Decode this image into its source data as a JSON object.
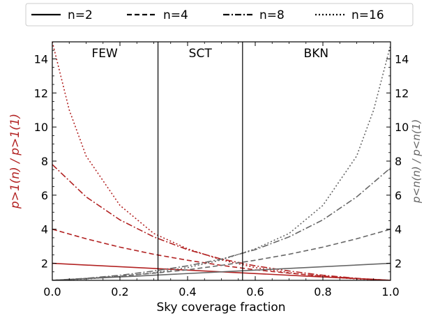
{
  "chart_data": {
    "type": "line",
    "xlabel": "Sky coverage fraction",
    "ylabel_left": "p>1(n) / p>1(1)",
    "ylabel_right": "p<n(n) / p<n(1)",
    "xlim": [
      0.0,
      1.0
    ],
    "ylim": [
      1.0,
      15.0
    ],
    "xticks": [
      0.0,
      0.2,
      0.4,
      0.6,
      0.8,
      1.0
    ],
    "xtick_labels": [
      "0.0",
      "0.2",
      "0.4",
      "0.6",
      "0.8",
      "1.0"
    ],
    "yticks": [
      2,
      4,
      6,
      8,
      10,
      12,
      14
    ],
    "ytick_labels": [
      "2",
      "4",
      "6",
      "8",
      "10",
      "12",
      "14"
    ],
    "grid": false,
    "legend_position": "top",
    "legend": [
      {
        "label": "n=2",
        "dash": "solid"
      },
      {
        "label": "n=4",
        "dash": "dashed"
      },
      {
        "label": "n=8",
        "dash": "dashdot"
      },
      {
        "label": "n=16",
        "dash": "dotted"
      }
    ],
    "colors": {
      "left_axis": "#b22222",
      "right_axis": "#666666"
    },
    "regions": [
      {
        "label": "FEW",
        "x_center": 0.155
      },
      {
        "label": "SCT",
        "x_center": 0.4375
      },
      {
        "label": "BKN",
        "x_center": 0.78
      }
    ],
    "vlines": [
      0.3125,
      0.5625
    ],
    "series": [
      {
        "name": "n=2",
        "axis": "left",
        "color": "#b22222",
        "dash": "solid",
        "x": [
          0.0,
          0.25,
          0.5,
          0.75,
          1.0
        ],
        "y": [
          2.0,
          1.75,
          1.5,
          1.25,
          1.0
        ]
      },
      {
        "name": "n=4",
        "axis": "left",
        "color": "#b22222",
        "dash": "dashed",
        "x": [
          0.0,
          0.1,
          0.2,
          0.3,
          0.4,
          0.5,
          0.6,
          0.7,
          0.8,
          0.9,
          1.0
        ],
        "y": [
          4.0,
          3.44,
          2.95,
          2.53,
          2.18,
          1.88,
          1.62,
          1.42,
          1.25,
          1.11,
          1.0
        ]
      },
      {
        "name": "n=8",
        "axis": "left",
        "color": "#b22222",
        "dash": "dashdot",
        "x": [
          0.0,
          0.1,
          0.2,
          0.3,
          0.4,
          0.5,
          0.6,
          0.7,
          0.8,
          0.9,
          1.0
        ],
        "y": [
          7.8,
          5.9,
          4.55,
          3.55,
          2.8,
          2.25,
          1.85,
          1.55,
          1.3,
          1.12,
          1.0
        ]
      },
      {
        "name": "n=16",
        "axis": "left",
        "color": "#b22222",
        "dash": "dotted",
        "x": [
          0.0,
          0.05,
          0.1,
          0.2,
          0.3,
          0.4,
          0.5,
          0.6,
          0.7,
          0.8,
          0.9,
          1.0
        ],
        "y": [
          15.0,
          11.0,
          8.3,
          5.4,
          3.75,
          2.85,
          2.2,
          1.75,
          1.45,
          1.22,
          1.08,
          1.0
        ]
      },
      {
        "name": "n=2",
        "axis": "right",
        "color": "#666666",
        "dash": "solid",
        "x": [
          0.0,
          0.25,
          0.5,
          0.75,
          1.0
        ],
        "y": [
          1.0,
          1.25,
          1.5,
          1.75,
          2.0
        ]
      },
      {
        "name": "n=4",
        "axis": "right",
        "color": "#666666",
        "dash": "dashed",
        "x": [
          0.0,
          0.1,
          0.2,
          0.3,
          0.4,
          0.5,
          0.6,
          0.7,
          0.8,
          0.9,
          1.0
        ],
        "y": [
          1.0,
          1.11,
          1.25,
          1.42,
          1.62,
          1.88,
          2.18,
          2.53,
          2.95,
          3.44,
          4.0
        ]
      },
      {
        "name": "n=8",
        "axis": "right",
        "color": "#666666",
        "dash": "dashdot",
        "x": [
          0.0,
          0.1,
          0.2,
          0.3,
          0.4,
          0.5,
          0.6,
          0.7,
          0.8,
          0.9,
          1.0
        ],
        "y": [
          1.0,
          1.12,
          1.3,
          1.55,
          1.85,
          2.25,
          2.8,
          3.55,
          4.55,
          5.9,
          7.6
        ]
      },
      {
        "name": "n=16",
        "axis": "right",
        "color": "#666666",
        "dash": "dotted",
        "x": [
          0.0,
          0.1,
          0.2,
          0.3,
          0.4,
          0.5,
          0.6,
          0.7,
          0.8,
          0.9,
          0.95,
          1.0
        ],
        "y": [
          1.0,
          1.08,
          1.22,
          1.45,
          1.75,
          2.2,
          2.85,
          3.75,
          5.4,
          8.3,
          11.0,
          14.8
        ]
      }
    ]
  }
}
